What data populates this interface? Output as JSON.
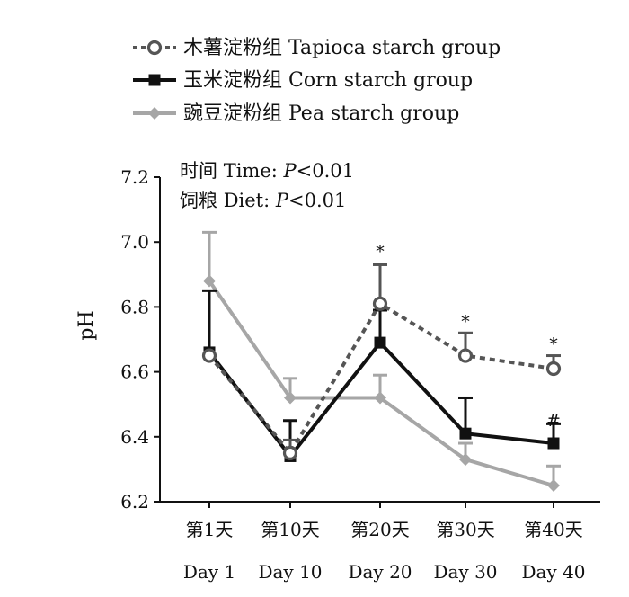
{
  "chart_data": {
    "type": "line",
    "ylabel": "pH",
    "ylim": [
      6.2,
      7.2
    ],
    "yticks": [
      "6.2",
      "6.4",
      "6.6",
      "6.8",
      "7.0",
      "7.2"
    ],
    "categories": [
      {
        "cn": "第1天",
        "en": "Day 1"
      },
      {
        "cn": "第10天",
        "en": "Day 10"
      },
      {
        "cn": "第20天",
        "en": "Day 20"
      },
      {
        "cn": "第30天",
        "en": "Day 30"
      },
      {
        "cn": "第40天",
        "en": "Day 40"
      }
    ],
    "series": [
      {
        "key": "tapioca",
        "name": "木薯淀粉组 Tapioca starch group",
        "values": [
          6.65,
          6.35,
          6.81,
          6.65,
          6.61
        ],
        "errors": [
          0.0,
          0.04,
          0.12,
          0.07,
          0.04
        ],
        "color": "#555555",
        "line_style": "dashed",
        "marker": "open-circle"
      },
      {
        "key": "corn",
        "name": "玉米淀粉组 Corn starch group",
        "values": [
          6.66,
          6.34,
          6.69,
          6.41,
          6.38
        ],
        "errors": [
          0.19,
          0.11,
          0.1,
          0.11,
          0.06
        ],
        "color": "#111111",
        "line_style": "solid",
        "marker": "square"
      },
      {
        "key": "pea",
        "name": "豌豆淀粉组 Pea starch group",
        "values": [
          6.88,
          6.52,
          6.52,
          6.33,
          6.25
        ],
        "errors": [
          0.15,
          0.06,
          0.07,
          0.05,
          0.06
        ],
        "color": "#a6a6a6",
        "line_style": "solid",
        "marker": "diamond"
      }
    ],
    "stats": [
      {
        "label": "时间",
        "text": "Time: ",
        "italic": "P",
        "suffix": "<0.01"
      },
      {
        "label": "饲粮",
        "text": "Diet: ",
        "italic": "P",
        "suffix": "<0.01"
      }
    ],
    "annotations": [
      {
        "text": "*",
        "category": 2,
        "value": 6.975
      },
      {
        "text": "*",
        "category": 3,
        "value": 6.76
      },
      {
        "text": "*",
        "category": 4,
        "value": 6.69
      },
      {
        "text": "#",
        "category": 4,
        "value": 6.455
      }
    ],
    "legend_position": "top-left",
    "grid": false
  }
}
